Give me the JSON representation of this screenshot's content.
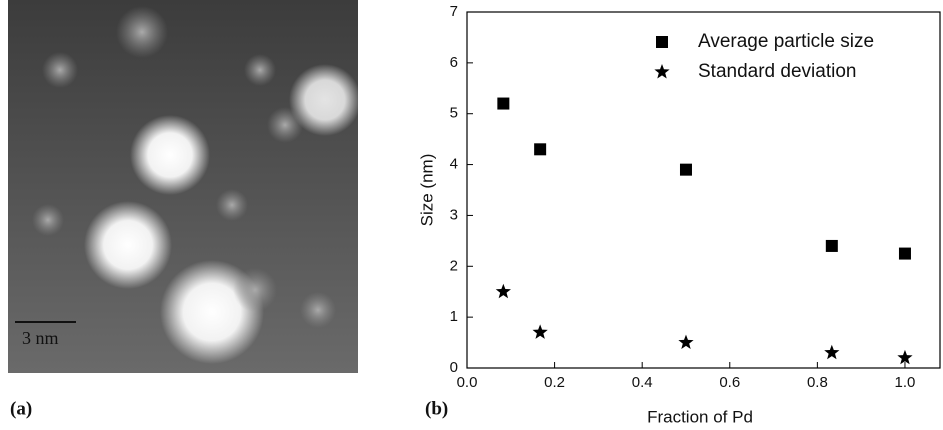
{
  "panel_labels": [
    "(a)",
    "(b)"
  ],
  "scale_bar_label": "3 nm",
  "chart_data": {
    "type": "scatter",
    "x_label": "Fraction of Pd",
    "y_label": "Size (nm)",
    "x": [
      0.083,
      0.167,
      0.5,
      0.833,
      1.0
    ],
    "series": [
      {
        "name": "Average particle size",
        "color": "#000000",
        "marker": "square",
        "values": [
          5.2,
          4.3,
          3.9,
          2.4,
          2.25
        ]
      },
      {
        "name": "Standard deviation",
        "color": "#000000",
        "marker": "star",
        "values": [
          1.5,
          0.7,
          0.5,
          0.3,
          0.2
        ]
      }
    ],
    "xlim": [
      0,
      1.08
    ],
    "ylim": [
      0,
      7
    ],
    "xticks": [
      {
        "value": 0,
        "label": "0.0"
      },
      {
        "value": 0.2,
        "label": "0.2"
      },
      {
        "value": 0.4,
        "label": "0.4"
      },
      {
        "value": 0.6,
        "label": "0.6"
      },
      {
        "value": 0.8,
        "label": "0.8"
      },
      {
        "value": 1.0,
        "label": "1.0"
      }
    ],
    "yticks": [
      0,
      1,
      2,
      3,
      4,
      5,
      6,
      7
    ],
    "legend": "upper right",
    "grid": false
  }
}
